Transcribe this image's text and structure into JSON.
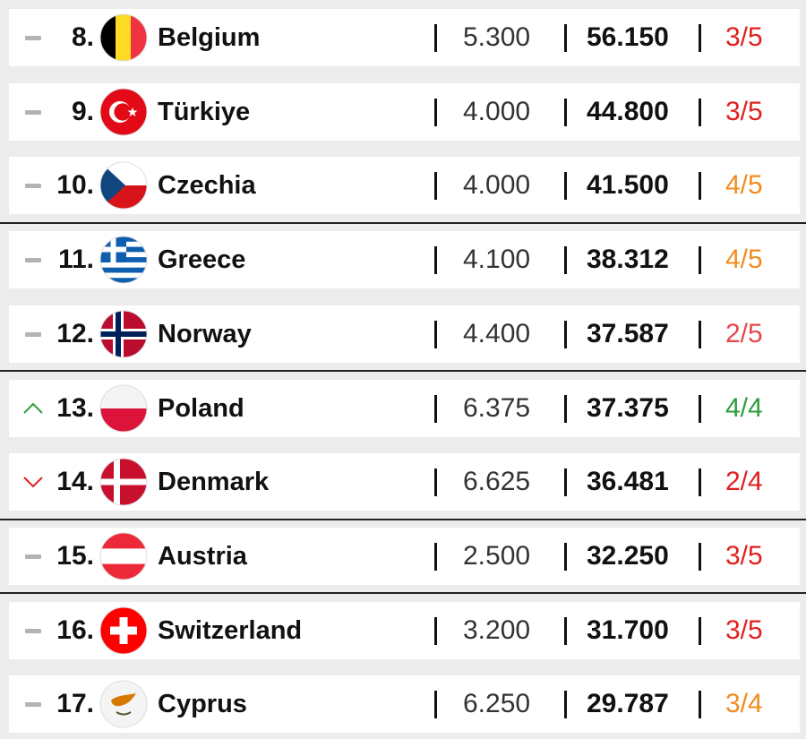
{
  "ranking": {
    "rows": [
      {
        "trend": "same",
        "rank": "8.",
        "country": "Belgium",
        "season": "5.300",
        "total": "56.150",
        "teams": "3/5",
        "teams_color": "#e0201e"
      },
      {
        "trend": "same",
        "rank": "9.",
        "country": "Türkiye",
        "season": "4.000",
        "total": "44.800",
        "teams": "3/5",
        "teams_color": "#e0201e"
      },
      {
        "trend": "same",
        "rank": "10.",
        "country": "Czechia",
        "season": "4.000",
        "total": "41.500",
        "teams": "4/5",
        "teams_color": "#f08c1e"
      },
      {
        "trend": "same",
        "rank": "11.",
        "country": "Greece",
        "season": "4.100",
        "total": "38.312",
        "teams": "4/5",
        "teams_color": "#f08c1e"
      },
      {
        "trend": "same",
        "rank": "12.",
        "country": "Norway",
        "season": "4.400",
        "total": "37.587",
        "teams": "2/5",
        "teams_color": "#e8474c"
      },
      {
        "trend": "up",
        "rank": "13.",
        "country": "Poland",
        "season": "6.375",
        "total": "37.375",
        "teams": "4/4",
        "teams_color": "#2e9e3e"
      },
      {
        "trend": "down",
        "rank": "14.",
        "country": "Denmark",
        "season": "6.625",
        "total": "36.481",
        "teams": "2/4",
        "teams_color": "#e0201e"
      },
      {
        "trend": "same",
        "rank": "15.",
        "country": "Austria",
        "season": "2.500",
        "total": "32.250",
        "teams": "3/5",
        "teams_color": "#e0201e"
      },
      {
        "trend": "same",
        "rank": "16.",
        "country": "Switzerland",
        "season": "3.200",
        "total": "31.700",
        "teams": "3/5",
        "teams_color": "#e0201e"
      },
      {
        "trend": "same",
        "rank": "17.",
        "country": "Cyprus",
        "season": "6.250",
        "total": "29.787",
        "teams": "3/4",
        "teams_color": "#f08c1e"
      }
    ]
  }
}
